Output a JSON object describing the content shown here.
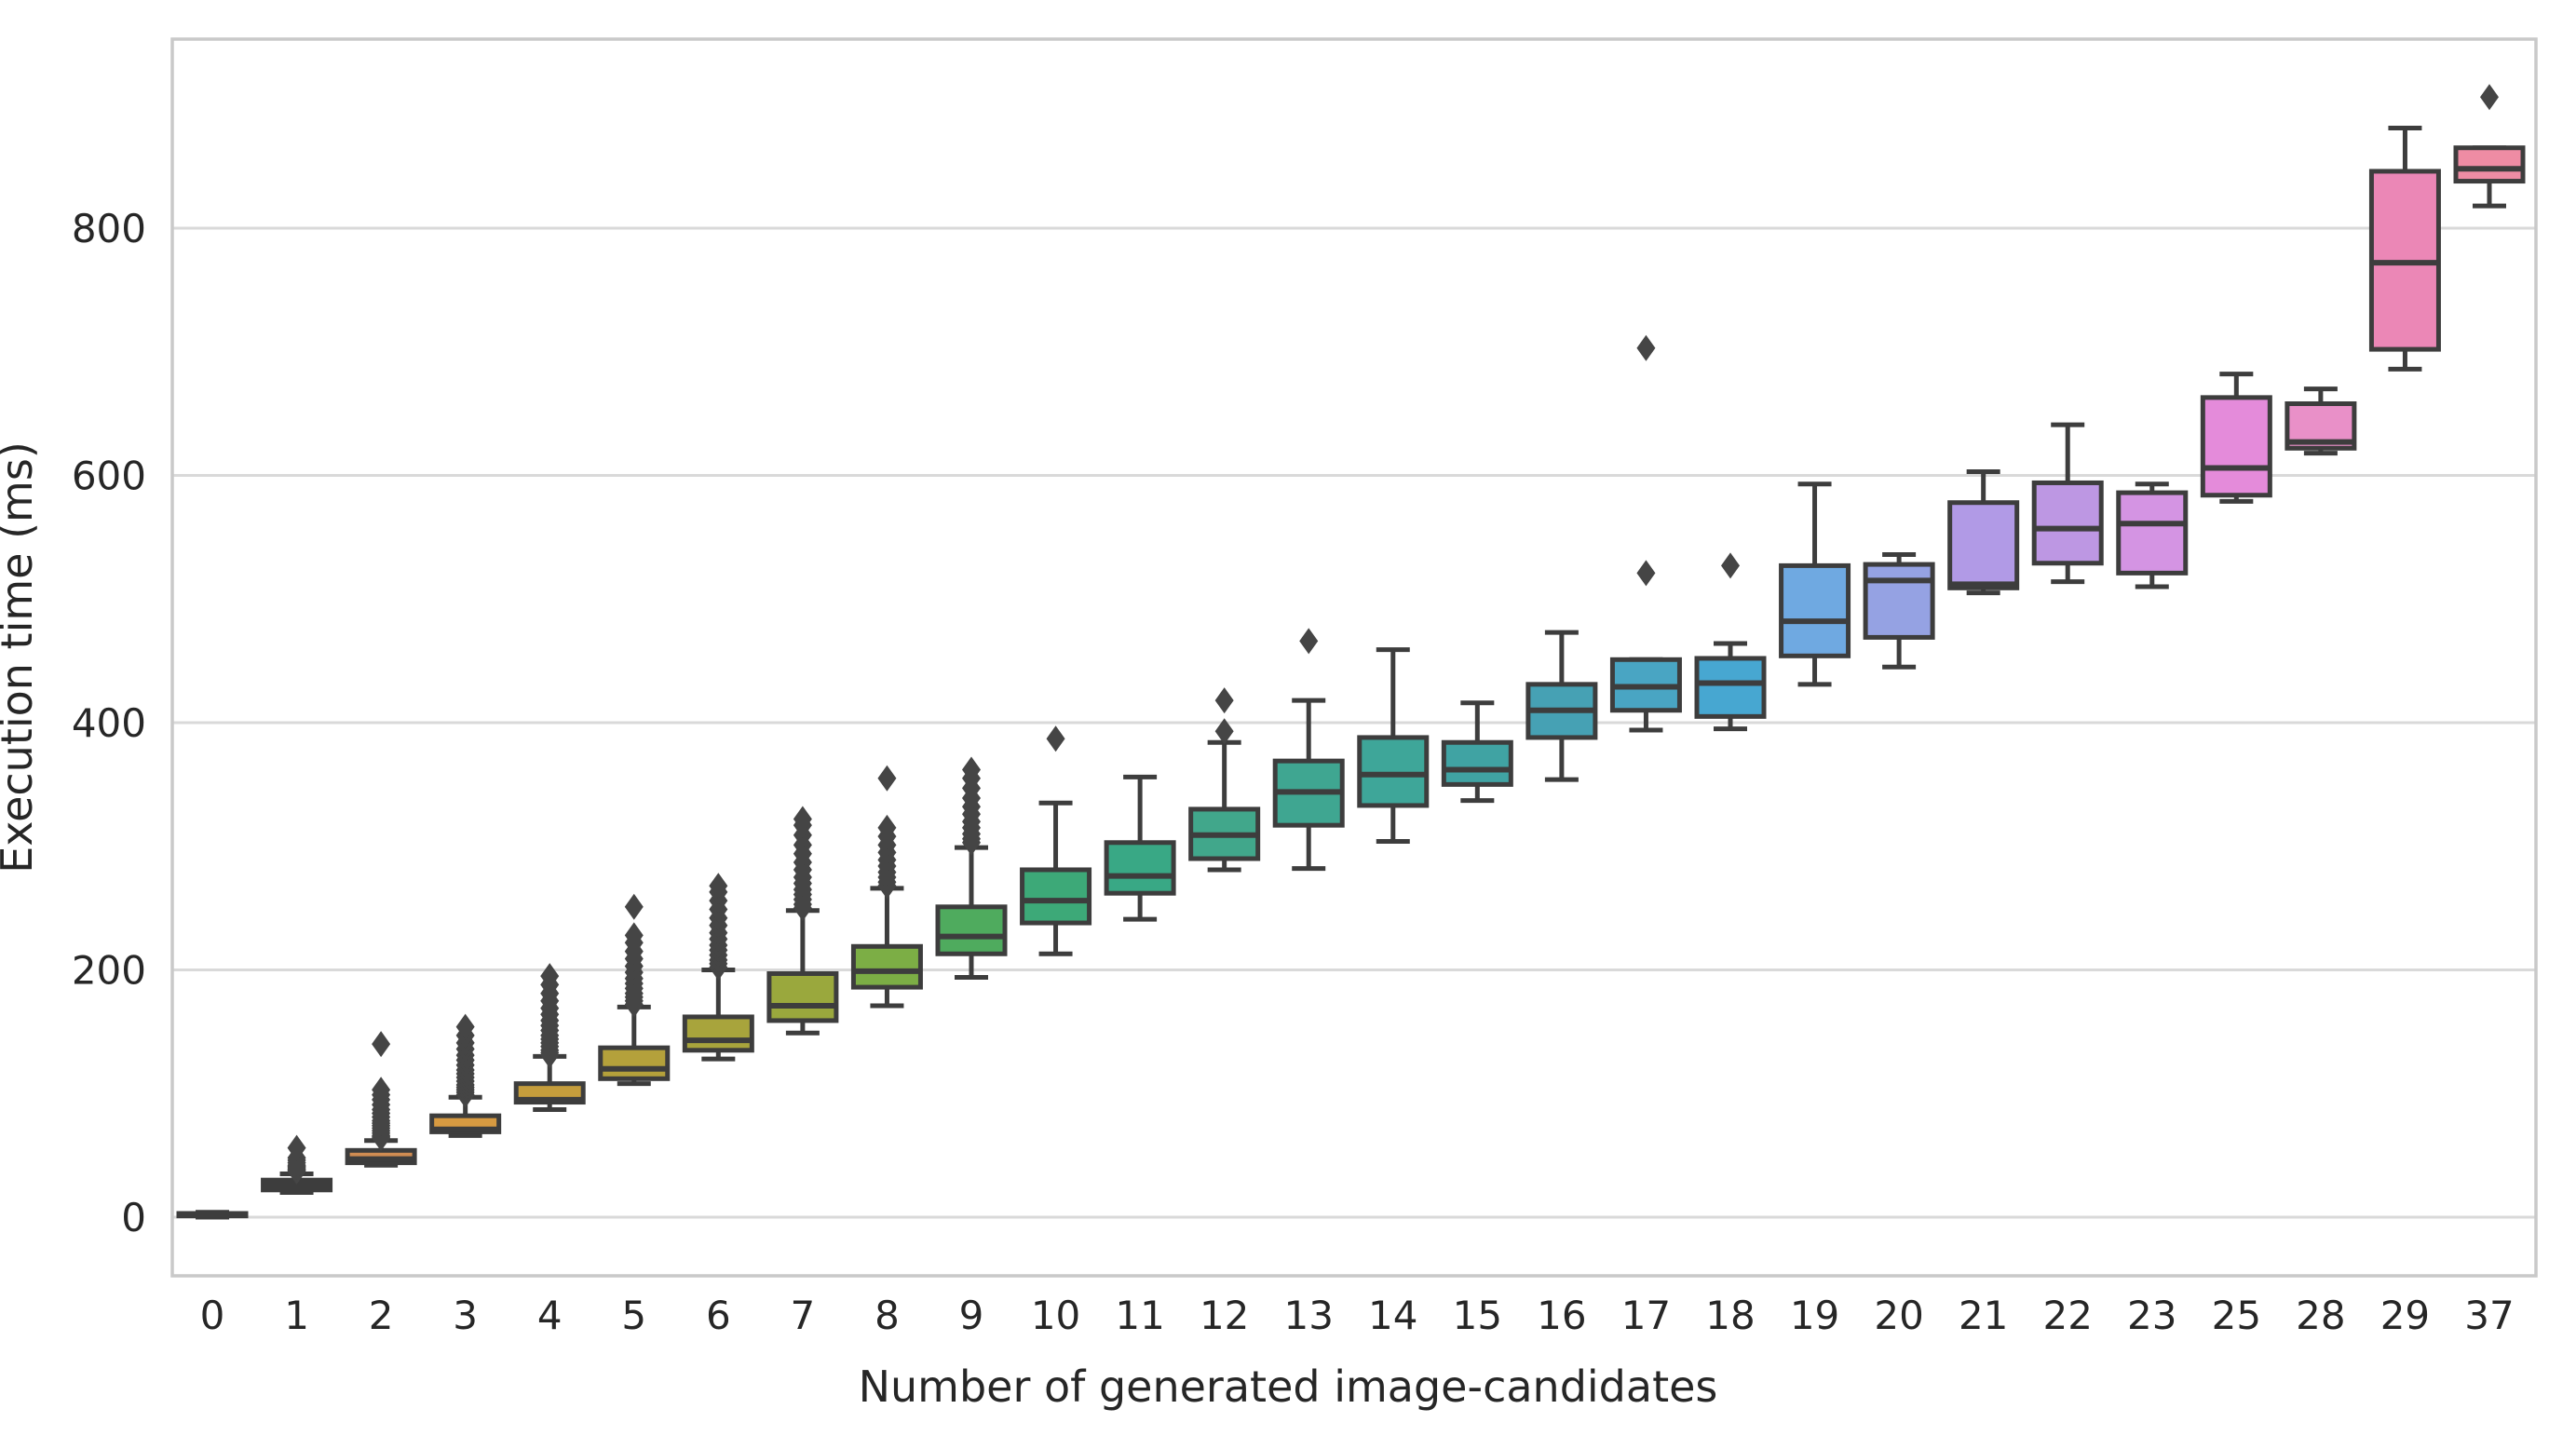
{
  "chart_data": {
    "type": "boxplot",
    "title": "",
    "xlabel": "Number of generated image-candidates",
    "ylabel": "Execution time (ms)",
    "yticks": [
      0,
      200,
      400,
      600,
      800
    ],
    "ylim": [
      -48,
      953
    ],
    "grid": "horizontal-only",
    "legend": "none",
    "categories": [
      "0",
      "1",
      "2",
      "3",
      "4",
      "5",
      "6",
      "7",
      "8",
      "9",
      "10",
      "11",
      "12",
      "13",
      "14",
      "15",
      "16",
      "17",
      "18",
      "19",
      "20",
      "21",
      "22",
      "23",
      "25",
      "28",
      "29",
      "37"
    ],
    "edge_color": "#3d3d3d",
    "grid_color": "#d9d9d9",
    "spine_color": "#c9c9c9",
    "text_color": "#262626",
    "boxes": [
      {
        "label": "0",
        "color": "#cf7365",
        "whisker_low": 0,
        "q1": 1,
        "median": 2,
        "q3": 3,
        "whisker_high": 4,
        "outliers": []
      },
      {
        "label": "1",
        "color": "#c9806f",
        "whisker_low": 20,
        "q1": 22,
        "median": 26,
        "q3": 30,
        "whisker_high": 35,
        "outliers": [
          37,
          38,
          39,
          40,
          41,
          42,
          44,
          46,
          48,
          56
        ]
      },
      {
        "label": "2",
        "color": "#d08c52",
        "whisker_low": 42,
        "q1": 44,
        "median": 47,
        "q3": 54,
        "whisker_high": 62,
        "outliers": [
          64,
          65,
          66,
          68,
          70,
          72,
          74,
          76,
          78,
          81,
          84,
          87,
          91,
          95,
          99,
          103,
          140
        ]
      },
      {
        "label": "3",
        "color": "#d79a41",
        "whisker_low": 66,
        "q1": 69,
        "median": 71,
        "q3": 82,
        "whisker_high": 97,
        "outliers": [
          99,
          101,
          103,
          105,
          107,
          110,
          113,
          116,
          119,
          123,
          127,
          131,
          136,
          141,
          147,
          154
        ]
      },
      {
        "label": "4",
        "color": "#c59d3c",
        "whisker_low": 87,
        "q1": 93,
        "median": 95,
        "q3": 108,
        "whisker_high": 130,
        "outliers": [
          131,
          133,
          135,
          138,
          141,
          144,
          147,
          151,
          155,
          159,
          164,
          169,
          175,
          181,
          188,
          195
        ]
      },
      {
        "label": "5",
        "color": "#b4a13b",
        "whisker_low": 108,
        "q1": 112,
        "median": 120,
        "q3": 137,
        "whisker_high": 170,
        "outliers": [
          172,
          175,
          178,
          181,
          185,
          189,
          193,
          198,
          203,
          209,
          215,
          222,
          228,
          251
        ]
      },
      {
        "label": "6",
        "color": "#a8a43c",
        "whisker_low": 128,
        "q1": 135,
        "median": 143,
        "q3": 162,
        "whisker_high": 200,
        "outliers": [
          202,
          205,
          208,
          212,
          216,
          220,
          225,
          230,
          236,
          242,
          249,
          256,
          263,
          268
        ]
      },
      {
        "label": "7",
        "color": "#9aa83d",
        "whisker_low": 149,
        "q1": 159,
        "median": 171,
        "q3": 197,
        "whisker_high": 248,
        "outliers": [
          250,
          253,
          257,
          261,
          265,
          270,
          275,
          281,
          287,
          294,
          301,
          309,
          317,
          322
        ]
      },
      {
        "label": "8",
        "color": "#7cae45",
        "whisker_low": 171,
        "q1": 186,
        "median": 199,
        "q3": 219,
        "whisker_high": 266,
        "outliers": [
          268,
          271,
          275,
          279,
          284,
          289,
          295,
          301,
          308,
          315,
          355
        ]
      },
      {
        "label": "9",
        "color": "#4fab5e",
        "whisker_low": 194,
        "q1": 213,
        "median": 227,
        "q3": 251,
        "whisker_high": 299,
        "outliers": [
          303,
          306,
          310,
          315,
          320,
          326,
          332,
          339,
          347,
          355,
          362
        ]
      },
      {
        "label": "10",
        "color": "#3da978",
        "whisker_low": 213,
        "q1": 238,
        "median": 256,
        "q3": 281,
        "whisker_high": 335,
        "outliers": [
          387
        ]
      },
      {
        "label": "11",
        "color": "#39a885",
        "whisker_low": 241,
        "q1": 262,
        "median": 276,
        "q3": 303,
        "whisker_high": 356,
        "outliers": []
      },
      {
        "label": "12",
        "color": "#41a78b",
        "whisker_low": 281,
        "q1": 290,
        "median": 309,
        "q3": 330,
        "whisker_high": 384,
        "outliers": [
          393,
          418
        ]
      },
      {
        "label": "13",
        "color": "#3fa691",
        "whisker_low": 282,
        "q1": 317,
        "median": 344,
        "q3": 369,
        "whisker_high": 418,
        "outliers": [
          466
        ]
      },
      {
        "label": "14",
        "color": "#3ea699",
        "whisker_low": 304,
        "q1": 333,
        "median": 358,
        "q3": 388,
        "whisker_high": 459,
        "outliers": []
      },
      {
        "label": "15",
        "color": "#40a3a3",
        "whisker_low": 337,
        "q1": 350,
        "median": 362,
        "q3": 384,
        "whisker_high": 416,
        "outliers": []
      },
      {
        "label": "16",
        "color": "#46a1b4",
        "whisker_low": 354,
        "q1": 388,
        "median": 410,
        "q3": 431,
        "whisker_high": 473,
        "outliers": []
      },
      {
        "label": "17",
        "color": "#49a5c3",
        "whisker_low": 394,
        "q1": 410,
        "median": 429,
        "q3": 451,
        "whisker_high": 451,
        "outliers": [
          521,
          703
        ]
      },
      {
        "label": "18",
        "color": "#47a7d1",
        "whisker_low": 395,
        "q1": 405,
        "median": 432,
        "q3": 452,
        "whisker_high": 464,
        "outliers": [
          527
        ]
      },
      {
        "label": "19",
        "color": "#6fa9e1",
        "whisker_low": 431,
        "q1": 454,
        "median": 482,
        "q3": 527,
        "whisker_high": 593,
        "outliers": []
      },
      {
        "label": "20",
        "color": "#95a2e3",
        "whisker_low": 445,
        "q1": 469,
        "median": 515,
        "q3": 528,
        "whisker_high": 536,
        "outliers": []
      },
      {
        "label": "21",
        "color": "#b19ae6",
        "whisker_low": 505,
        "q1": 509,
        "median": 512,
        "q3": 578,
        "whisker_high": 603,
        "outliers": []
      },
      {
        "label": "22",
        "color": "#bd97e3",
        "whisker_low": 514,
        "q1": 529,
        "median": 557,
        "q3": 594,
        "whisker_high": 641,
        "outliers": []
      },
      {
        "label": "23",
        "color": "#d494e3",
        "whisker_low": 510,
        "q1": 521,
        "median": 561,
        "q3": 586,
        "whisker_high": 593,
        "outliers": []
      },
      {
        "label": "25",
        "color": "#e48bda",
        "whisker_low": 579,
        "q1": 584,
        "median": 606,
        "q3": 663,
        "whisker_high": 682,
        "outliers": []
      },
      {
        "label": "28",
        "color": "#e990c8",
        "whisker_low": 618,
        "q1": 622,
        "median": 627,
        "q3": 658,
        "whisker_high": 670,
        "outliers": []
      },
      {
        "label": "29",
        "color": "#eb87b6",
        "whisker_low": 686,
        "q1": 702,
        "median": 772,
        "q3": 846,
        "whisker_high": 881,
        "outliers": []
      },
      {
        "label": "37",
        "color": "#ee8ca4",
        "whisker_low": 818,
        "q1": 838,
        "median": 848,
        "q3": 865,
        "whisker_high": 865,
        "outliers": [
          906
        ]
      }
    ]
  }
}
